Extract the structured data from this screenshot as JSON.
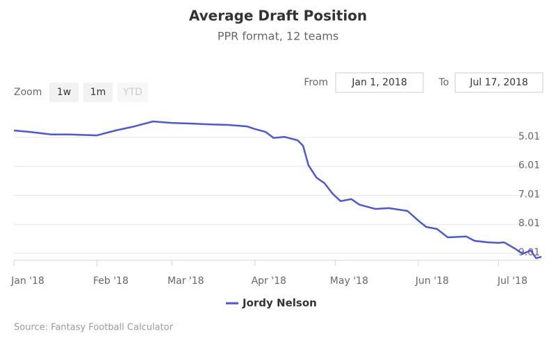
{
  "chart_data": {
    "type": "line",
    "title": "Average Draft Position",
    "subtitle": "PPR format, 12 teams",
    "range_selector": {
      "label": "Zoom",
      "buttons": [
        "1w",
        "1m",
        "YTD"
      ]
    },
    "date_range": {
      "from_label": "From",
      "from": "Jan 1, 2018",
      "to_label": "To",
      "to": "Jul 17, 2018"
    },
    "x": [
      "2018-01-01",
      "2018-01-07",
      "2018-01-15",
      "2018-01-22",
      "2018-02-01",
      "2018-02-08",
      "2018-02-15",
      "2018-02-22",
      "2018-03-01",
      "2018-03-08",
      "2018-03-15",
      "2018-03-22",
      "2018-03-29",
      "2018-04-01",
      "2018-04-05",
      "2018-04-08",
      "2018-04-12",
      "2018-04-17",
      "2018-04-19",
      "2018-04-21",
      "2018-04-24",
      "2018-04-27",
      "2018-04-30",
      "2018-05-03",
      "2018-05-07",
      "2018-05-10",
      "2018-05-16",
      "2018-05-21",
      "2018-05-28",
      "2018-06-01",
      "2018-06-04",
      "2018-06-08",
      "2018-06-12",
      "2018-06-19",
      "2018-06-22",
      "2018-06-27",
      "2018-07-01",
      "2018-07-03",
      "2018-07-07",
      "2018-07-10",
      "2018-07-13",
      "2018-07-15",
      "2018-07-17"
    ],
    "series": [
      {
        "name": "Jordy Nelson",
        "color": "#4a55e0",
        "values": [
          4.77,
          4.82,
          4.91,
          4.91,
          4.94,
          4.77,
          4.63,
          4.46,
          4.51,
          4.53,
          4.56,
          4.58,
          4.63,
          4.72,
          4.82,
          5.03,
          4.99,
          5.11,
          5.3,
          5.97,
          6.4,
          6.59,
          6.95,
          7.21,
          7.14,
          7.33,
          7.48,
          7.45,
          7.55,
          7.88,
          8.1,
          8.17,
          8.46,
          8.43,
          8.58,
          8.63,
          8.65,
          8.63,
          8.84,
          9.03,
          8.91,
          9.18,
          9.13
        ]
      }
    ],
    "xlim": [
      "2018-01-01",
      "2018-07-17"
    ],
    "xticks": [
      {
        "value": "2018-01-01",
        "label": "Jan '18"
      },
      {
        "value": "2018-02-01",
        "label": "Feb '18"
      },
      {
        "value": "2018-03-01",
        "label": "Mar '18"
      },
      {
        "value": "2018-04-01",
        "label": "Apr '18"
      },
      {
        "value": "2018-05-01",
        "label": "May '18"
      },
      {
        "value": "2018-06-01",
        "label": "Jun '18"
      },
      {
        "value": "2018-07-01",
        "label": "Jul '18"
      }
    ],
    "ylim": [
      3.98,
      9.25
    ],
    "yticks": [
      5.01,
      6.01,
      7.01,
      8.01,
      9.01
    ],
    "y_reversed": true,
    "grid": true,
    "legend": "bottom",
    "source": "Source: Fantasy Football Calculator"
  }
}
